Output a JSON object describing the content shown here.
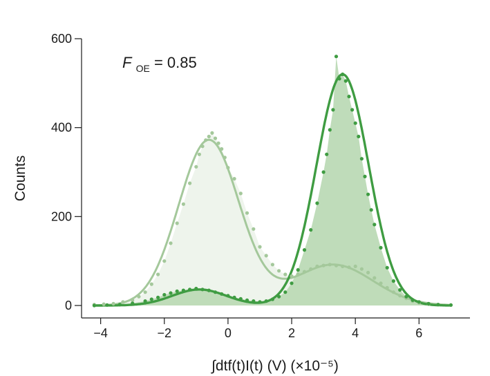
{
  "chart_data": {
    "type": "area",
    "xlabel": "∫dtf(t)I(t) (V) (×10⁻⁵)",
    "ylabel": "Counts",
    "xlim": [
      -4.6,
      7.6
    ],
    "ylim": [
      -28,
      600
    ],
    "x_ticks": [
      -4,
      -2,
      0,
      2,
      4,
      6
    ],
    "x_tick_labels": [
      "−4",
      "−2",
      "0",
      "2",
      "4",
      "6"
    ],
    "y_ticks": [
      0,
      200,
      400,
      600
    ],
    "y_tick_labels": [
      "0",
      "200",
      "400",
      "600"
    ],
    "annotation": {
      "symbol": "F",
      "subscript": "OE",
      "value": " = 0.85"
    },
    "colors": {
      "light_fill": "#eef4ec",
      "light_line": "#a4c89b",
      "dark_fill": "#bcdab6",
      "dark_line": "#3f9c42"
    },
    "series": [
      {
        "components": [
          {
            "amplitude": 372,
            "mean": -0.6,
            "sigma": 0.95
          },
          {
            "amplitude": 92,
            "mean": 3.3,
            "sigma": 1.25
          }
        ],
        "points": [
          [
            -4.2,
            2
          ],
          [
            -3.9,
            3
          ],
          [
            -3.6,
            4
          ],
          [
            -3.3,
            8
          ],
          [
            -3.0,
            12
          ],
          [
            -2.8,
            20
          ],
          [
            -2.6,
            30
          ],
          [
            -2.4,
            48
          ],
          [
            -2.2,
            70
          ],
          [
            -2.0,
            100
          ],
          [
            -1.8,
            140
          ],
          [
            -1.6,
            185
          ],
          [
            -1.4,
            228
          ],
          [
            -1.2,
            275
          ],
          [
            -1.0,
            312
          ],
          [
            -0.9,
            340
          ],
          [
            -0.8,
            358
          ],
          [
            -0.7,
            372
          ],
          [
            -0.6,
            380
          ],
          [
            -0.5,
            388
          ],
          [
            -0.4,
            376
          ],
          [
            -0.3,
            365
          ],
          [
            -0.2,
            352
          ],
          [
            -0.1,
            333
          ],
          [
            0.0,
            310
          ],
          [
            0.2,
            285
          ],
          [
            0.4,
            252
          ],
          [
            0.6,
            208
          ],
          [
            0.8,
            172
          ],
          [
            1.0,
            132
          ],
          [
            1.2,
            112
          ],
          [
            1.4,
            92
          ],
          [
            1.6,
            78
          ],
          [
            1.8,
            70
          ],
          [
            2.0,
            66
          ],
          [
            2.2,
            70
          ],
          [
            2.4,
            76
          ],
          [
            2.6,
            82
          ],
          [
            2.8,
            88
          ],
          [
            3.0,
            90
          ],
          [
            3.2,
            92
          ],
          [
            3.4,
            90
          ],
          [
            3.6,
            88
          ],
          [
            3.8,
            86
          ],
          [
            4.0,
            88
          ],
          [
            4.2,
            82
          ],
          [
            4.4,
            74
          ],
          [
            4.6,
            62
          ],
          [
            4.8,
            50
          ],
          [
            5.0,
            40
          ],
          [
            5.2,
            30
          ],
          [
            5.4,
            22
          ],
          [
            5.6,
            16
          ],
          [
            5.8,
            10
          ],
          [
            6.0,
            6
          ],
          [
            6.3,
            3
          ],
          [
            6.6,
            2
          ],
          [
            7.0,
            1
          ]
        ]
      },
      {
        "components": [
          {
            "amplitude": 36,
            "mean": -0.9,
            "sigma": 0.85
          },
          {
            "amplitude": 520,
            "mean": 3.6,
            "sigma": 0.82
          }
        ],
        "points": [
          [
            -4.2,
            0
          ],
          [
            -3.8,
            1
          ],
          [
            -3.4,
            2
          ],
          [
            -3.0,
            5
          ],
          [
            -2.6,
            10
          ],
          [
            -2.4,
            14
          ],
          [
            -2.2,
            18
          ],
          [
            -2.0,
            24
          ],
          [
            -1.8,
            28
          ],
          [
            -1.6,
            32
          ],
          [
            -1.4,
            34
          ],
          [
            -1.2,
            36
          ],
          [
            -1.0,
            38
          ],
          [
            -0.8,
            36
          ],
          [
            -0.6,
            34
          ],
          [
            -0.4,
            30
          ],
          [
            -0.2,
            26
          ],
          [
            0.0,
            22
          ],
          [
            0.2,
            18
          ],
          [
            0.4,
            15
          ],
          [
            0.6,
            12
          ],
          [
            0.8,
            10
          ],
          [
            1.0,
            8
          ],
          [
            1.2,
            10
          ],
          [
            1.4,
            14
          ],
          [
            1.6,
            20
          ],
          [
            1.8,
            30
          ],
          [
            2.0,
            50
          ],
          [
            2.2,
            80
          ],
          [
            2.4,
            125
          ],
          [
            2.6,
            170
          ],
          [
            2.8,
            230
          ],
          [
            3.0,
            300
          ],
          [
            3.1,
            340
          ],
          [
            3.2,
            395
          ],
          [
            3.3,
            440
          ],
          [
            3.4,
            560
          ],
          [
            3.5,
            510
          ],
          [
            3.6,
            520
          ],
          [
            3.7,
            505
          ],
          [
            3.8,
            470
          ],
          [
            3.9,
            440
          ],
          [
            4.0,
            410
          ],
          [
            4.1,
            380
          ],
          [
            4.2,
            330
          ],
          [
            4.3,
            290
          ],
          [
            4.4,
            250
          ],
          [
            4.5,
            215
          ],
          [
            4.6,
            182
          ],
          [
            4.8,
            130
          ],
          [
            5.0,
            85
          ],
          [
            5.2,
            55
          ],
          [
            5.4,
            35
          ],
          [
            5.6,
            20
          ],
          [
            5.8,
            12
          ],
          [
            6.0,
            8
          ],
          [
            6.3,
            4
          ],
          [
            6.6,
            2
          ],
          [
            7.0,
            1
          ]
        ]
      }
    ]
  }
}
